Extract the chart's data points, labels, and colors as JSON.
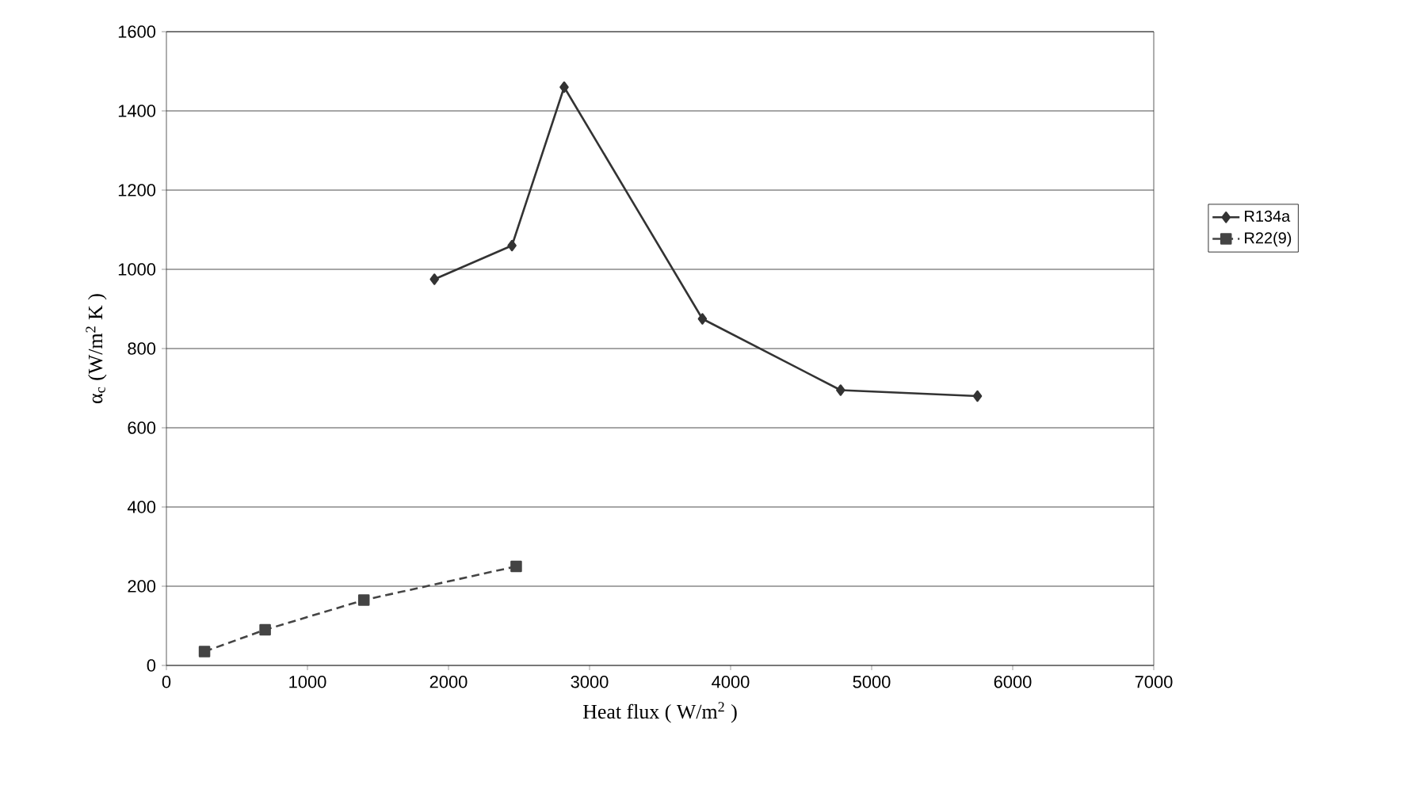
{
  "chart_data": {
    "type": "line",
    "xlabel": "Heat flux ( W/m$^{2}$ )",
    "ylabel": "α$_{c}$  (W/m$^{2}$ K )",
    "xlim": [
      0,
      7000
    ],
    "xticks": [
      0,
      1000,
      2000,
      3000,
      4000,
      5000,
      6000,
      7000
    ],
    "ylim": [
      0,
      1600
    ],
    "yticks": [
      0,
      200,
      400,
      600,
      800,
      1000,
      1200,
      1400,
      1600
    ],
    "grid": "y",
    "legend": "right",
    "series": [
      {
        "name": "R134a",
        "color": "#333333",
        "marker": "diamond",
        "line_style": "solid",
        "x": [
          1900,
          2450,
          2820,
          3800,
          4780,
          5750
        ],
        "values": [
          975,
          1060,
          1460,
          875,
          695,
          680
        ]
      },
      {
        "name": "R22(9)",
        "color": "#444444",
        "marker": "square",
        "line_style": "dashed",
        "x": [
          270,
          700,
          1400,
          2480
        ],
        "values": [
          35,
          90,
          165,
          250
        ]
      }
    ]
  }
}
